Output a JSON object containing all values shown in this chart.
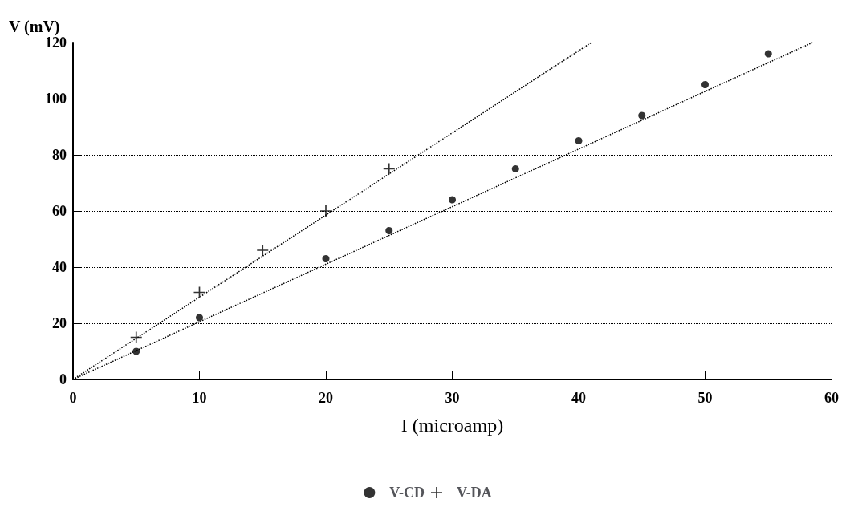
{
  "chart_data": {
    "type": "scatter",
    "xlabel": "I (microamp)",
    "ylabel": "V (mV)",
    "xlim": [
      0,
      60
    ],
    "ylim": [
      0,
      120
    ],
    "xticks": [
      0,
      10,
      20,
      30,
      40,
      50,
      60
    ],
    "yticks": [
      0,
      20,
      40,
      60,
      80,
      100,
      120
    ],
    "grid": "y",
    "legend": "bottom",
    "series": [
      {
        "name": "V-CD",
        "color": "#000000",
        "marker": "circle",
        "x": [
          5,
          10,
          20,
          25,
          30,
          35,
          40,
          45,
          50,
          55
        ],
        "values": [
          10,
          22,
          43,
          53,
          64,
          75,
          85,
          94,
          105,
          116
        ]
      },
      {
        "name": "V-DA",
        "color": "#000000",
        "marker": "cross",
        "x": [
          5,
          10,
          15,
          20,
          25
        ],
        "values": [
          15,
          31,
          46,
          60,
          75
        ]
      },
      {
        "type": "line",
        "color": "#000000",
        "marker": "none",
        "line_style": "dotted",
        "x": [
          0,
          58.5
        ],
        "values": [
          0,
          120
        ]
      },
      {
        "type": "line",
        "color": "#000000",
        "marker": "none",
        "line_style": "dotted",
        "x": [
          0,
          41
        ],
        "values": [
          0,
          120
        ]
      }
    ]
  }
}
